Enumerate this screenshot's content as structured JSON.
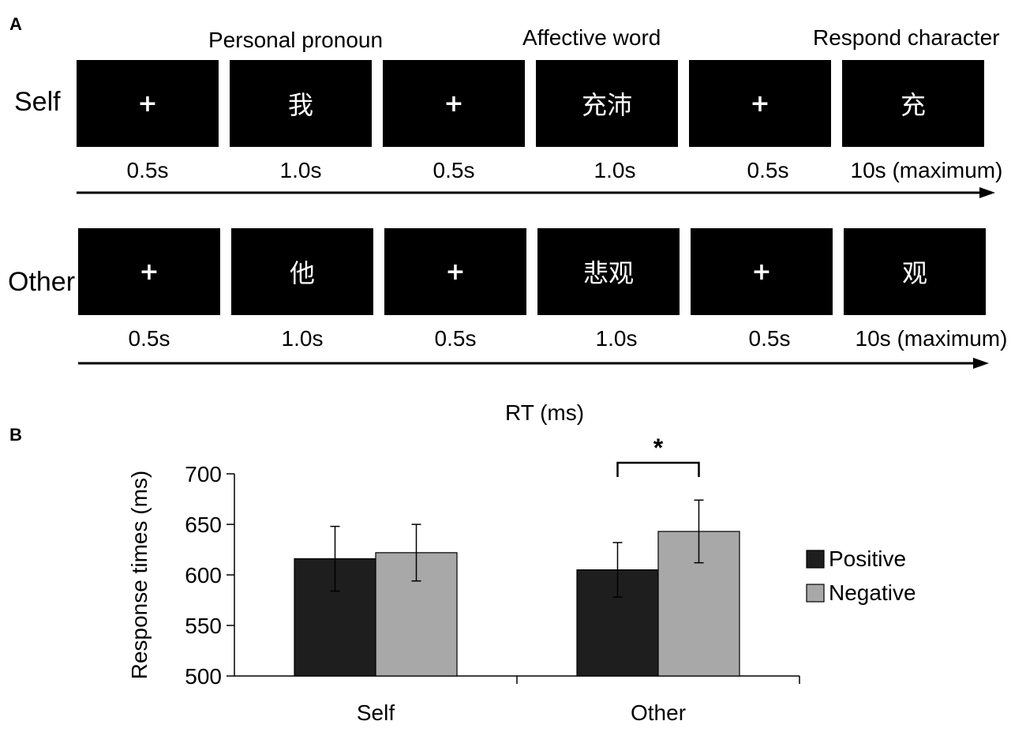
{
  "panel_a": {
    "label": "A",
    "headers": [
      "Personal pronoun",
      "Affective word",
      "Respond character"
    ],
    "rows": [
      {
        "label": "Self",
        "screens": [
          "+",
          "我",
          "+",
          "充沛",
          "+",
          "充"
        ],
        "durations": [
          "0.5s",
          "1.0s",
          "0.5s",
          "1.0s",
          "0.5s",
          "10s (maximum)"
        ]
      },
      {
        "label": "Other",
        "screens": [
          "+",
          "他",
          "+",
          "悲观",
          "+",
          "观"
        ],
        "durations": [
          "0.5s",
          "1.0s",
          "0.5s",
          "1.0s",
          "0.5s",
          "10s (maximum)"
        ]
      }
    ]
  },
  "panel_b": {
    "label": "B",
    "title": "RT (ms)"
  },
  "chart_data": {
    "type": "bar",
    "title": "RT (ms)",
    "xlabel": "",
    "ylabel": "Response times (ms)",
    "ylim": [
      500,
      700
    ],
    "yticks": [
      "500",
      "550",
      "600",
      "650",
      "700"
    ],
    "categories": [
      "Self",
      "Other"
    ],
    "series": [
      {
        "name": "Positive",
        "color": "#1e1e1e",
        "values": [
          616,
          605
        ],
        "errors": [
          32,
          27
        ]
      },
      {
        "name": "Negative",
        "color": "#a8a8a8",
        "values": [
          622,
          643
        ],
        "errors": [
          28,
          31
        ]
      }
    ],
    "significance": {
      "category": "Other",
      "label": "*"
    },
    "legend_position": "right"
  }
}
